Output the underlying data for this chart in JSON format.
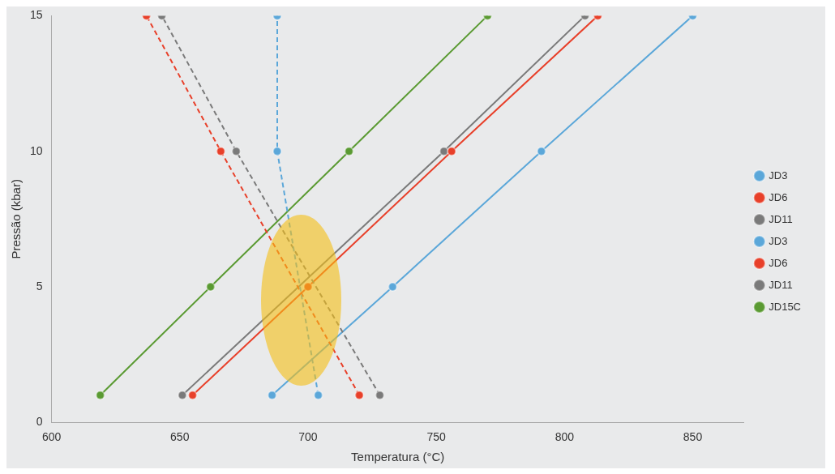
{
  "chart_data": {
    "type": "line",
    "xlabel": "Temperatura (°C)",
    "ylabel": "Pressão (kbar)",
    "xlim": [
      600,
      870
    ],
    "xticks": [
      600,
      650,
      700,
      750,
      800,
      850
    ],
    "ylim": [
      0,
      15
    ],
    "yticks": [
      0,
      5,
      10,
      15
    ],
    "grid": false,
    "legend": "right",
    "marker": "circle",
    "series": [
      {
        "name": "JD3",
        "color": "#5ba7d9",
        "line_style": "dashed",
        "x": [
          704,
          697,
          688,
          688
        ],
        "values": [
          1,
          null,
          10,
          15
        ]
      },
      {
        "name": "JD6",
        "color": "#e8402a",
        "line_style": "dashed",
        "x": [
          720,
          696,
          666,
          637
        ],
        "values": [
          1,
          null,
          10,
          15
        ]
      },
      {
        "name": "JD11",
        "color": "#7a7a7a",
        "line_style": "dashed",
        "x": [
          728,
          703,
          672,
          643
        ],
        "values": [
          1,
          null,
          10,
          15
        ]
      },
      {
        "name": "JD3",
        "color": "#5ba7d9",
        "line_style": "solid",
        "x": [
          686,
          733,
          791,
          850
        ],
        "values": [
          1,
          5,
          10,
          15
        ]
      },
      {
        "name": "JD6",
        "color": "#e8402a",
        "line_style": "solid",
        "x": [
          655,
          700,
          756,
          813
        ],
        "values": [
          1,
          5,
          10,
          15
        ]
      },
      {
        "name": "JD11",
        "color": "#7a7a7a",
        "line_style": "solid",
        "x": [
          651,
          696,
          753,
          808
        ],
        "values": [
          1,
          null,
          10,
          15
        ]
      },
      {
        "name": "JD15C",
        "color": "#5a9a32",
        "line_style": "solid",
        "x": [
          619,
          662,
          716,
          770
        ],
        "values": [
          1,
          5,
          10,
          15
        ]
      }
    ]
  }
}
